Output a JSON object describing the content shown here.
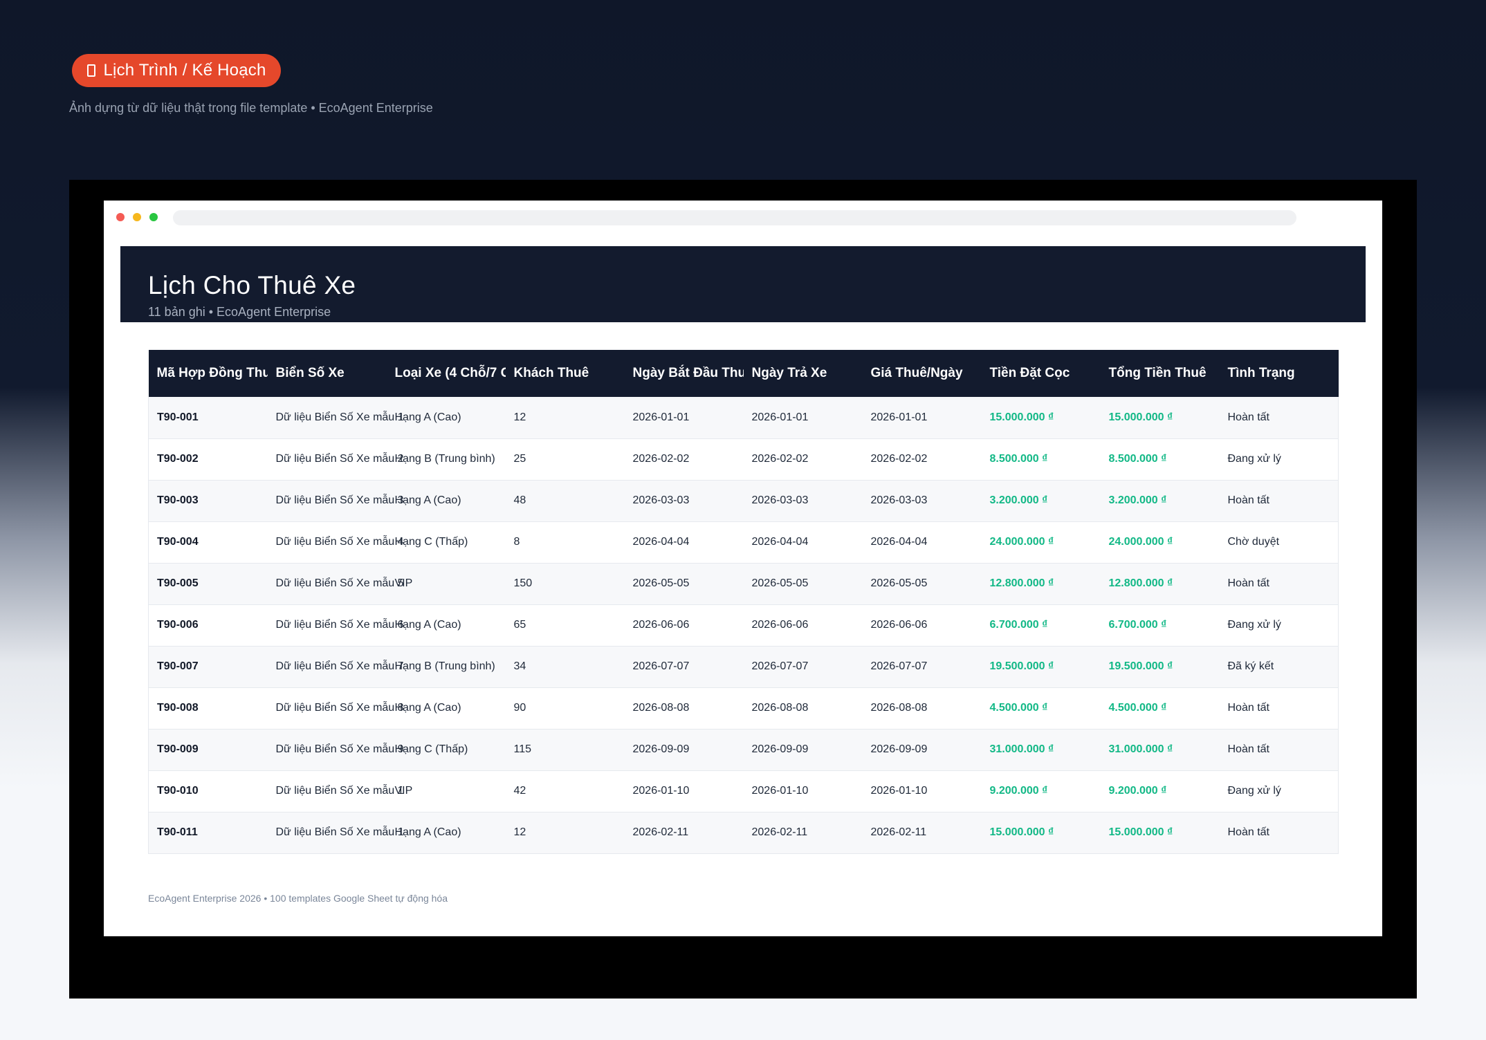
{
  "badge": {
    "label": "Lịch Trình / Kế Hoạch",
    "icon": "calendar-icon"
  },
  "subtitle": "Ảnh dựng từ dữ liệu thật trong file template • EcoAgent Enterprise",
  "hero": {
    "title": "Lịch Cho Thuê Xe",
    "subtitle": "11 bản ghi • EcoAgent Enterprise"
  },
  "table": {
    "columns": [
      "Mã Hợp Đồng Thuê",
      "Biển Số Xe",
      "Loại Xe (4 Chỗ/7 C",
      "Khách Thuê",
      "Ngày Bắt Đầu Thuê",
      "Ngày Trả Xe",
      "Giá Thuê/Ngày",
      "Tiền Đặt Cọc",
      "Tổng Tiền Thuê",
      "Tình Trạng"
    ],
    "rows": [
      [
        "T90-001",
        "Dữ liệu Biển Số Xe mẫu 1",
        "Hạng A (Cao)",
        "12",
        "2026-01-01",
        "2026-01-01",
        "2026-01-01",
        "15.000.000 ₫",
        "15.000.000 ₫",
        "Hoàn tất"
      ],
      [
        "T90-002",
        "Dữ liệu Biển Số Xe mẫu 2",
        "Hạng B (Trung bình)",
        "25",
        "2026-02-02",
        "2026-02-02",
        "2026-02-02",
        "8.500.000 ₫",
        "8.500.000 ₫",
        "Đang xử lý"
      ],
      [
        "T90-003",
        "Dữ liệu Biển Số Xe mẫu 3",
        "Hạng A (Cao)",
        "48",
        "2026-03-03",
        "2026-03-03",
        "2026-03-03",
        "3.200.000 ₫",
        "3.200.000 ₫",
        "Hoàn tất"
      ],
      [
        "T90-004",
        "Dữ liệu Biển Số Xe mẫu 4",
        "Hạng C (Thấp)",
        "8",
        "2026-04-04",
        "2026-04-04",
        "2026-04-04",
        "24.000.000 ₫",
        "24.000.000 ₫",
        "Chờ duyệt"
      ],
      [
        "T90-005",
        "Dữ liệu Biển Số Xe mẫu 5",
        "VIP",
        "150",
        "2026-05-05",
        "2026-05-05",
        "2026-05-05",
        "12.800.000 ₫",
        "12.800.000 ₫",
        "Hoàn tất"
      ],
      [
        "T90-006",
        "Dữ liệu Biển Số Xe mẫu 6",
        "Hạng A (Cao)",
        "65",
        "2026-06-06",
        "2026-06-06",
        "2026-06-06",
        "6.700.000 ₫",
        "6.700.000 ₫",
        "Đang xử lý"
      ],
      [
        "T90-007",
        "Dữ liệu Biển Số Xe mẫu 7",
        "Hạng B (Trung bình)",
        "34",
        "2026-07-07",
        "2026-07-07",
        "2026-07-07",
        "19.500.000 ₫",
        "19.500.000 ₫",
        "Đã ký kết"
      ],
      [
        "T90-008",
        "Dữ liệu Biển Số Xe mẫu 8",
        "Hạng A (Cao)",
        "90",
        "2026-08-08",
        "2026-08-08",
        "2026-08-08",
        "4.500.000 ₫",
        "4.500.000 ₫",
        "Hoàn tất"
      ],
      [
        "T90-009",
        "Dữ liệu Biển Số Xe mẫu 9",
        "Hạng C (Thấp)",
        "115",
        "2026-09-09",
        "2026-09-09",
        "2026-09-09",
        "31.000.000 ₫",
        "31.000.000 ₫",
        "Hoàn tất"
      ],
      [
        "T90-010",
        "Dữ liệu Biển Số Xe mẫu 1",
        "VIP",
        "42",
        "2026-01-10",
        "2026-01-10",
        "2026-01-10",
        "9.200.000 ₫",
        "9.200.000 ₫",
        "Đang xử lý"
      ],
      [
        "T90-011",
        "Dữ liệu Biển Số Xe mẫu 1",
        "Hạng A (Cao)",
        "12",
        "2026-02-11",
        "2026-02-11",
        "2026-02-11",
        "15.000.000 ₫",
        "15.000.000 ₫",
        "Hoàn tất"
      ]
    ]
  },
  "footer": "EcoAgent Enterprise 2026 • 100 templates Google Sheet tự động hóa",
  "colors": {
    "accent": "#e5482b",
    "header_bg": "#131b2e",
    "money": "#12b886"
  }
}
